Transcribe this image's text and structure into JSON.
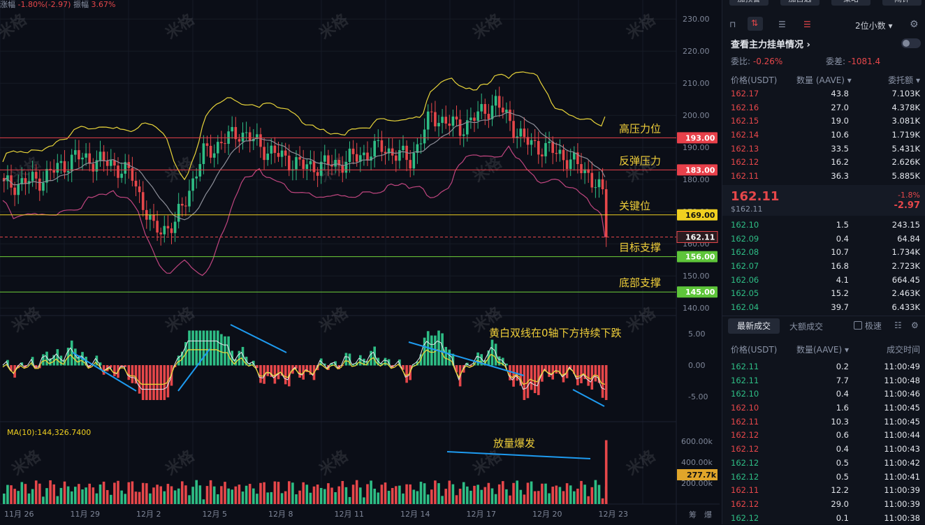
{
  "top_info": {
    "change_label": "涨幅",
    "change_value": "-1.80%(-2.97)",
    "amp_label": "振幅",
    "amp_value": "3.67%"
  },
  "watermark": "米格",
  "price_axis": [
    "230.00",
    "220.00",
    "210.00",
    "200.00",
    "190.00",
    "180.00",
    "170.00",
    "160.00",
    "150.00",
    "140.00"
  ],
  "macd_axis": [
    "5.00",
    "0.00",
    "-5.00"
  ],
  "vol_axis": [
    "600.00k",
    "400.00k",
    "200.00k"
  ],
  "date_axis": [
    "11月 26",
    "11月 29",
    "12月 2",
    "12月 5",
    "12月 8",
    "12月 11",
    "12月 14",
    "12月 17",
    "12月 20",
    "12月 23"
  ],
  "levels": [
    {
      "label": "193.00",
      "price": 193,
      "color": "#e8404a",
      "tag": "#e8404a",
      "ann": "高压力位"
    },
    {
      "label": "183.00",
      "price": 183,
      "color": "#e8404a",
      "tag": "#e8404a",
      "ann": "反弹压力"
    },
    {
      "label": "169.00",
      "price": 169,
      "color": "#f0d020",
      "tag": "#f0d020",
      "ann": "关键位"
    },
    {
      "label": "156.00",
      "price": 156,
      "color": "#6fd23a",
      "tag": "#5ec53a",
      "ann": "目标支撑"
    },
    {
      "label": "145.00",
      "price": 145,
      "color": "#6fd23a",
      "tag": "#5ec53a",
      "ann": "底部支撑"
    }
  ],
  "current_tag": "162.11",
  "current_price": 162.11,
  "vol_tag": "277.7k",
  "vol_ma_label": "MA(10):144,326.7400",
  "macd_note": "黄白双线在0轴下方持续下跌",
  "vol_note": "放量爆发",
  "bottom_right": [
    "筹",
    "爆"
  ],
  "side": {
    "buttons": [
      "加预警",
      "加自选",
      "策略",
      "闹钟"
    ],
    "decimal": "2位小数",
    "main_force": "查看主力挂单情况",
    "wei_bi_label": "委比:",
    "wei_bi": "-0.26%",
    "wei_cha_label": "委差:",
    "wei_cha": "-1081.4",
    "cols": [
      "价格(USDT)",
      "数量 (AAVE)",
      "委托额"
    ],
    "asks": [
      [
        "162.17",
        "43.8",
        "7.103K"
      ],
      [
        "162.16",
        "27.0",
        "4.378K"
      ],
      [
        "162.15",
        "19.0",
        "3.081K"
      ],
      [
        "162.14",
        "10.6",
        "1.719K"
      ],
      [
        "162.13",
        "33.5",
        "5.431K"
      ],
      [
        "162.12",
        "16.2",
        "2.626K"
      ],
      [
        "162.11",
        "36.3",
        "5.885K"
      ]
    ],
    "last_price": "162.11",
    "last_usd": "$162.11",
    "last_pct": "-1.8%",
    "last_chg": "-2.97",
    "bids": [
      [
        "162.10",
        "1.5",
        "243.15"
      ],
      [
        "162.09",
        "0.4",
        "64.84"
      ],
      [
        "162.08",
        "10.7",
        "1.734K"
      ],
      [
        "162.07",
        "16.8",
        "2.723K"
      ],
      [
        "162.06",
        "4.1",
        "664.45"
      ],
      [
        "162.05",
        "15.2",
        "2.463K"
      ],
      [
        "162.04",
        "39.7",
        "6.433K"
      ]
    ],
    "tabs": [
      "最新成交",
      "大额成交"
    ],
    "fast_label": "极速",
    "trade_cols": [
      "价格(USDT)",
      "数量(AAVE)",
      "成交时间"
    ],
    "trades": [
      [
        "162.11",
        "0.2",
        "11:00:49",
        "g"
      ],
      [
        "162.11",
        "7.7",
        "11:00:48",
        "g"
      ],
      [
        "162.10",
        "0.4",
        "11:00:46",
        "g"
      ],
      [
        "162.10",
        "1.6",
        "11:00:45",
        "r"
      ],
      [
        "162.11",
        "10.3",
        "11:00:45",
        "r"
      ],
      [
        "162.12",
        "0.6",
        "11:00:44",
        "r"
      ],
      [
        "162.12",
        "0.4",
        "11:00:43",
        "r"
      ],
      [
        "162.12",
        "0.5",
        "11:00:42",
        "g"
      ],
      [
        "162.12",
        "0.5",
        "11:00:41",
        "g"
      ],
      [
        "162.11",
        "12.2",
        "11:00:39",
        "r"
      ],
      [
        "162.12",
        "29.0",
        "11:00:39",
        "r"
      ],
      [
        "162.12",
        "0.1",
        "11:00:38",
        "g"
      ]
    ]
  }
}
